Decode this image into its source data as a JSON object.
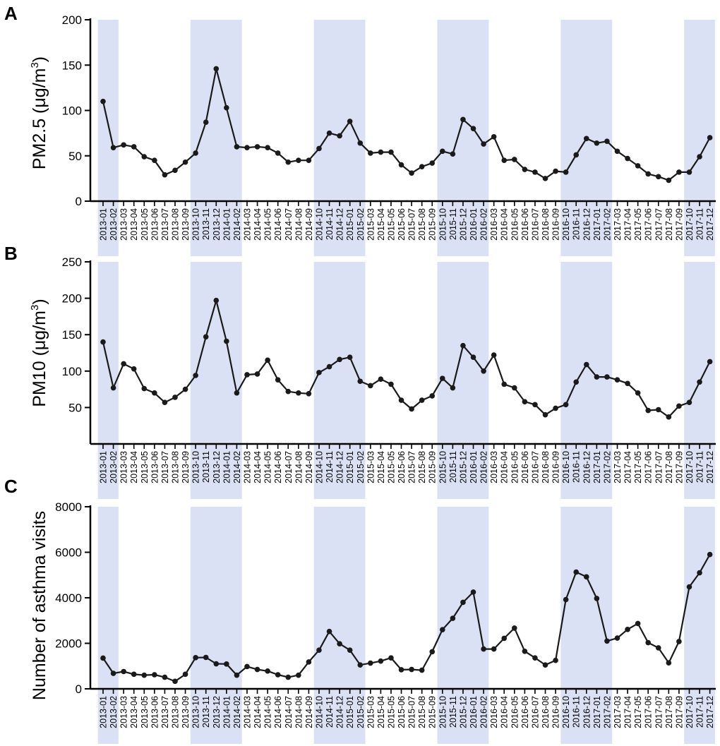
{
  "colors": {
    "shade": "#dbe1f4",
    "line": "#1a1a1a",
    "axis": "#000000",
    "text": "#000000"
  },
  "months": [
    "2013-01",
    "2013-02",
    "2013-03",
    "2013-04",
    "2013-05",
    "2013-06",
    "2013-07",
    "2013-08",
    "2013-09",
    "2013-10",
    "2013-11",
    "2013-12",
    "2014-01",
    "2014-02",
    "2014-03",
    "2014-04",
    "2014-05",
    "2014-06",
    "2014-07",
    "2014-08",
    "2014-09",
    "2014-10",
    "2014-11",
    "2014-12",
    "2015-01",
    "2015-02",
    "2015-03",
    "2015-04",
    "2015-05",
    "2015-06",
    "2015-07",
    "2015-08",
    "2015-09",
    "2015-10",
    "2015-11",
    "2015-12",
    "2016-01",
    "2016-02",
    "2016-03",
    "2016-04",
    "2016-05",
    "2016-06",
    "2016-07",
    "2016-08",
    "2016-09",
    "2016-10",
    "2016-11",
    "2016-12",
    "2017-01",
    "2017-02",
    "2017-03",
    "2017-04",
    "2017-05",
    "2017-06",
    "2017-07",
    "2017-08",
    "2017-09",
    "2017-10",
    "2017-11",
    "2017-12"
  ],
  "shaded_periods": [
    {
      "start": "2013-01",
      "end": "2013-02"
    },
    {
      "start": "2013-10",
      "end": "2014-02"
    },
    {
      "start": "2014-10",
      "end": "2015-02"
    },
    {
      "start": "2015-10",
      "end": "2016-02"
    },
    {
      "start": "2016-10",
      "end": "2017-02"
    },
    {
      "start": "2017-10",
      "end": "2017-12"
    }
  ],
  "chart_data": [
    {
      "type": "line",
      "panel_letter": "A",
      "ylabel_main": "PM2.5 (μg/m",
      "ylabel_sup": "3",
      "ylabel_end": ")",
      "ylim": [
        0,
        200
      ],
      "yticks": [
        0,
        50,
        100,
        150,
        200
      ],
      "categories_ref": "months",
      "series": [
        {
          "name": "PM2.5",
          "values": [
            110,
            59,
            62,
            60,
            49,
            45,
            29,
            34,
            43,
            53,
            87,
            146,
            103,
            60,
            59,
            60,
            59,
            53,
            43,
            45,
            45,
            58,
            75,
            72,
            88,
            64,
            53,
            54,
            54,
            40,
            31,
            38,
            42,
            55,
            52,
            90,
            80,
            63,
            71,
            45,
            46,
            35,
            32,
            25,
            33,
            32,
            51,
            69,
            64,
            66,
            55,
            47,
            39,
            30,
            27,
            23,
            32,
            32,
            49,
            70
          ]
        }
      ]
    },
    {
      "type": "line",
      "panel_letter": "B",
      "ylabel_main": "PM10 (μg/m",
      "ylabel_sup": "3",
      "ylabel_end": ")",
      "ylim": [
        0,
        250
      ],
      "yticks": [
        50,
        100,
        150,
        200,
        250
      ],
      "categories_ref": "months",
      "series": [
        {
          "name": "PM10",
          "values": [
            140,
            77,
            110,
            103,
            76,
            70,
            57,
            64,
            75,
            94,
            147,
            197,
            141,
            70,
            95,
            96,
            115,
            88,
            72,
            70,
            69,
            98,
            106,
            116,
            119,
            86,
            80,
            89,
            82,
            60,
            48,
            60,
            66,
            90,
            77,
            135,
            119,
            100,
            122,
            82,
            77,
            58,
            54,
            40,
            49,
            54,
            85,
            109,
            92,
            92,
            88,
            83,
            70,
            46,
            47,
            37,
            52,
            57,
            85,
            113
          ]
        }
      ]
    },
    {
      "type": "line",
      "panel_letter": "C",
      "ylabel_main": "Number of asthma visits",
      "ylim": [
        0,
        8000
      ],
      "yticks": [
        0,
        2000,
        4000,
        6000,
        8000
      ],
      "categories_ref": "months",
      "series": [
        {
          "name": "Asthma visits",
          "values": [
            1350,
            680,
            760,
            640,
            600,
            620,
            510,
            330,
            640,
            1370,
            1380,
            1100,
            1090,
            600,
            980,
            850,
            780,
            620,
            510,
            600,
            1180,
            1700,
            2520,
            1980,
            1700,
            1050,
            1130,
            1220,
            1360,
            840,
            850,
            820,
            1630,
            2600,
            3100,
            3800,
            4250,
            1750,
            1750,
            2220,
            2670,
            1650,
            1360,
            1050,
            1250,
            3920,
            5130,
            4920,
            3970,
            2100,
            2230,
            2610,
            2870,
            2030,
            1800,
            1140,
            2080,
            4480,
            5100,
            5900
          ]
        }
      ]
    }
  ]
}
